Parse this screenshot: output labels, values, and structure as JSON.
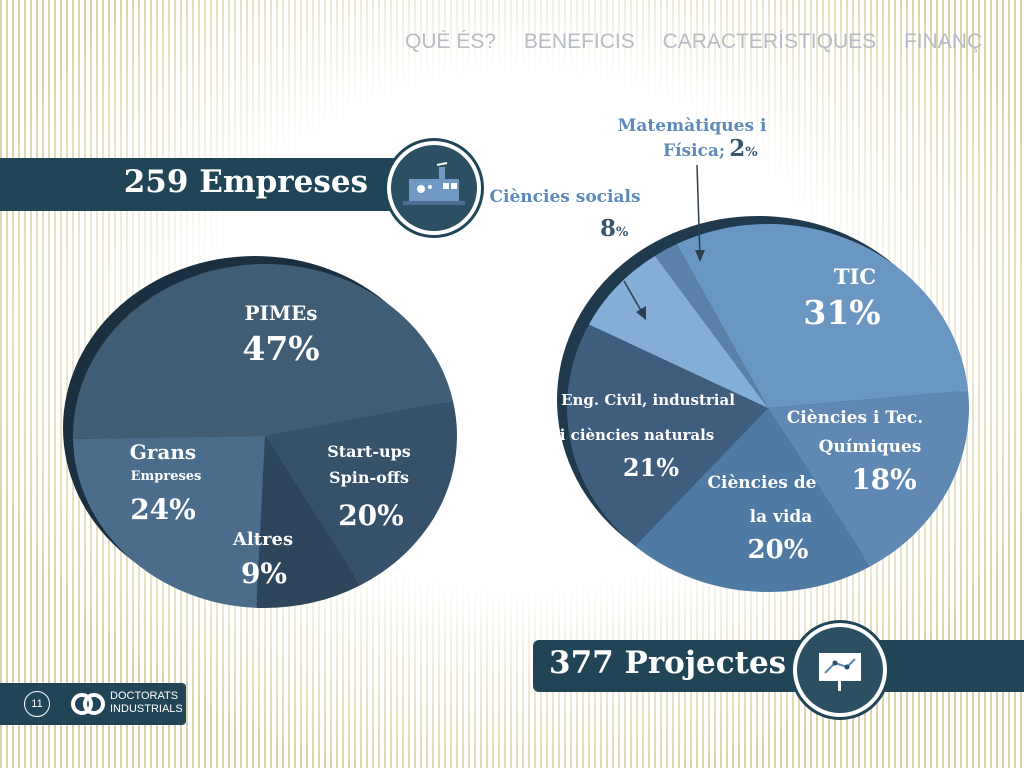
{
  "nav": [
    "QUÈ ÉS?",
    "BENEFICIS",
    "CARACTERÍSTIQUES",
    "FINANÇ"
  ],
  "banner_empreses": "259 Empreses",
  "banner_projectes": "377 Projectes",
  "page_number": "11",
  "logo": [
    "DOCTORATS",
    "INDUSTRIALS"
  ],
  "colors": {
    "dark_teal": "#1f4556",
    "pie_left": [
      "#3f5e76",
      "#36516a",
      "#2d465b",
      "#4a6d8c"
    ],
    "pie_right": [
      "#6a97c2",
      "#5f89b3",
      "#4e7aa3",
      "#3f5e7e",
      "#84aed6",
      "#5a82a8"
    ]
  },
  "chart_data": [
    {
      "type": "pie",
      "slices": [
        {
          "label": "PIMEs",
          "value": 47,
          "display": "47%"
        },
        {
          "label": "Start-ups Spin-offs",
          "value": 20,
          "display": "20%"
        },
        {
          "label": "Altres",
          "value": 9,
          "display": "9%"
        },
        {
          "label": "Grans Empreses",
          "value": 24,
          "display": "24%"
        }
      ]
    },
    {
      "type": "pie",
      "slices": [
        {
          "label": "TIC",
          "value": 31,
          "display": "31%"
        },
        {
          "label": "Ciències i Tec. Químiques",
          "value": 18,
          "display": "18%"
        },
        {
          "label": "Ciències de la vida",
          "value": 20,
          "display": "20%"
        },
        {
          "label": "Eng. Civil, industrial i ciències naturals",
          "value": 21,
          "display": "21%"
        },
        {
          "label": "Ciències socials",
          "value": 8,
          "display": "8%"
        },
        {
          "label": "Matemàtiques i Física",
          "value": 2,
          "display": "2%"
        }
      ]
    }
  ],
  "labels": {
    "left": {
      "pimes": "PIMEs",
      "pimes_pct": "47%",
      "grans": "Grans",
      "empreses": "Empreses",
      "grans_pct": "24%",
      "altres": "Altres",
      "altres_pct": "9%",
      "startups": "Start-ups",
      "spinoffs": "Spin-offs",
      "startups_pct": "20%"
    },
    "right": {
      "tic": "TIC",
      "tic_pct": "31%",
      "quim1": "Ciències i Tec.",
      "quim2": "Químiques",
      "quim_pct": "18%",
      "vida1": "Ciències de",
      "vida2": "la vida",
      "vida_pct": "20%",
      "eng1": "Eng. Civil, industrial",
      "eng2": "i ciències naturals",
      "eng_pct": "21%",
      "soc": "Ciències socials",
      "soc_num": "8",
      "soc_unit": "%",
      "mat1": "Matemàtiques i",
      "mat2": "Física;",
      "mat_num": "2",
      "mat_unit": "%"
    }
  }
}
